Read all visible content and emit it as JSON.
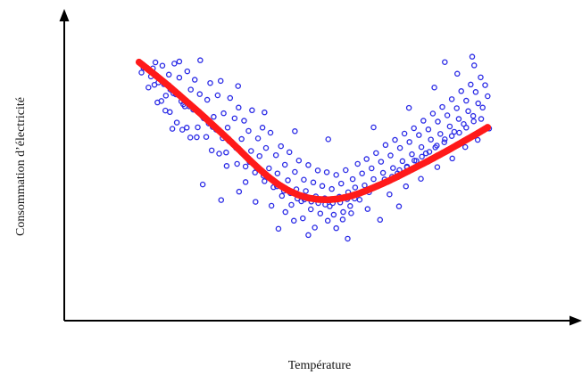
{
  "chart_data": {
    "type": "scatter",
    "title": "",
    "xlabel": "Température",
    "ylabel": "Consommation d’électricité",
    "xlim": [
      0,
      100
    ],
    "ylim": [
      0,
      100
    ],
    "grid": false,
    "legend": "none",
    "colors": {
      "points": "#2a2ae6",
      "fit": "#ff1a1a",
      "axes": "#000000"
    },
    "series": [
      {
        "type": "scatter",
        "points": [
          [
            15.5,
            82.9
          ],
          [
            15.9,
            84.5
          ],
          [
            16.9,
            77.9
          ],
          [
            17.8,
            84.3
          ],
          [
            18.1,
            78.8
          ],
          [
            18.7,
            72.9
          ],
          [
            19.5,
            73.4
          ],
          [
            19.7,
            85.2
          ],
          [
            20.3,
            70.2
          ],
          [
            20.4,
            75.2
          ],
          [
            21.0,
            82.2
          ],
          [
            21.7,
            64.1
          ],
          [
            21.9,
            76.0
          ],
          [
            22.1,
            85.9
          ],
          [
            22.6,
            66.2
          ],
          [
            23.1,
            81.2
          ],
          [
            23.5,
            73.3
          ],
          [
            23.7,
            63.8
          ],
          [
            24.2,
            71.6
          ],
          [
            24.7,
            83.3
          ],
          [
            25.3,
            61.2
          ],
          [
            25.4,
            77.2
          ],
          [
            25.9,
            70.5
          ],
          [
            26.2,
            80.5
          ],
          [
            26.8,
            64.6
          ],
          [
            27.2,
            75.7
          ],
          [
            27.3,
            87.0
          ],
          [
            28.0,
            67.6
          ],
          [
            28.5,
            61.4
          ],
          [
            28.7,
            73.8
          ],
          [
            29.3,
            79.4
          ],
          [
            29.8,
            64.7
          ],
          [
            30.0,
            68.1
          ],
          [
            30.8,
            75.3
          ],
          [
            31.1,
            55.8
          ],
          [
            31.4,
            80.1
          ],
          [
            32.0,
            69.3
          ],
          [
            32.5,
            56.2
          ],
          [
            32.8,
            64.5
          ],
          [
            33.3,
            74.4
          ],
          [
            33.7,
            59.5
          ],
          [
            34.2,
            67.6
          ],
          [
            34.7,
            52.4
          ],
          [
            35.0,
            71.2
          ],
          [
            35.6,
            60.7
          ],
          [
            36.1,
            66.8
          ],
          [
            36.4,
            51.5
          ],
          [
            37.0,
            63.4
          ],
          [
            37.5,
            56.7
          ],
          [
            37.7,
            70.3
          ],
          [
            38.3,
            49.5
          ],
          [
            38.9,
            60.9
          ],
          [
            39.2,
            55.0
          ],
          [
            39.8,
            64.5
          ],
          [
            40.2,
            46.6
          ],
          [
            40.5,
            57.7
          ],
          [
            41.1,
            50.9
          ],
          [
            41.4,
            62.8
          ],
          [
            42.0,
            44.6
          ],
          [
            42.5,
            55.3
          ],
          [
            42.8,
            49.2
          ],
          [
            43.5,
            58.3
          ],
          [
            43.7,
            41.7
          ],
          [
            44.3,
            52.1
          ],
          [
            44.9,
            46.9
          ],
          [
            45.2,
            56.3
          ],
          [
            45.6,
            38.7
          ],
          [
            46.3,
            49.7
          ],
          [
            46.6,
            43.9
          ],
          [
            47.1,
            53.5
          ],
          [
            47.6,
            39.9
          ],
          [
            48.1,
            47.1
          ],
          [
            48.5,
            43.3
          ],
          [
            49.0,
            52.0
          ],
          [
            49.5,
            37.2
          ],
          [
            50.0,
            46.2
          ],
          [
            50.5,
            41.5
          ],
          [
            50.9,
            50.2
          ],
          [
            51.4,
            35.8
          ],
          [
            51.8,
            45.0
          ],
          [
            52.3,
            40.9
          ],
          [
            52.7,
            49.6
          ],
          [
            53.3,
            38.2
          ],
          [
            53.7,
            44.0
          ],
          [
            54.1,
            35.4
          ],
          [
            54.6,
            48.7
          ],
          [
            55.2,
            41.4
          ],
          [
            55.6,
            45.8
          ],
          [
            56.0,
            36.3
          ],
          [
            56.5,
            50.3
          ],
          [
            57.0,
            42.9
          ],
          [
            57.4,
            38.3
          ],
          [
            57.9,
            47.3
          ],
          [
            58.4,
            44.5
          ],
          [
            58.9,
            52.4
          ],
          [
            59.3,
            40.4
          ],
          [
            59.8,
            49.2
          ],
          [
            60.3,
            45.2
          ],
          [
            60.7,
            54.0
          ],
          [
            61.2,
            42.9
          ],
          [
            61.7,
            50.9
          ],
          [
            62.1,
            47.3
          ],
          [
            62.6,
            56.0
          ],
          [
            63.1,
            45.1
          ],
          [
            63.6,
            53.1
          ],
          [
            64.0,
            49.4
          ],
          [
            64.5,
            58.7
          ],
          [
            65.0,
            46.6
          ],
          [
            65.5,
            55.2
          ],
          [
            66.0,
            51.0
          ],
          [
            66.4,
            60.4
          ],
          [
            66.9,
            49.2
          ],
          [
            67.4,
            57.7
          ],
          [
            67.9,
            53.3
          ],
          [
            68.3,
            62.5
          ],
          [
            68.8,
            51.2
          ],
          [
            69.3,
            59.7
          ],
          [
            69.8,
            55.6
          ],
          [
            70.2,
            64.3
          ],
          [
            70.7,
            53.4
          ],
          [
            71.2,
            62.0
          ],
          [
            71.7,
            58.0
          ],
          [
            72.1,
            66.8
          ],
          [
            72.6,
            55.9
          ],
          [
            73.1,
            63.9
          ],
          [
            73.6,
            60.5
          ],
          [
            74.0,
            69.2
          ],
          [
            74.5,
            57.9
          ],
          [
            75.0,
            66.5
          ],
          [
            75.5,
            62.4
          ],
          [
            75.9,
            71.4
          ],
          [
            76.4,
            60.6
          ],
          [
            76.9,
            68.6
          ],
          [
            77.4,
            64.9
          ],
          [
            77.8,
            74.0
          ],
          [
            78.3,
            63.1
          ],
          [
            78.8,
            71.0
          ],
          [
            79.2,
            67.4
          ],
          [
            79.7,
            76.7
          ],
          [
            80.2,
            65.7
          ],
          [
            80.7,
            73.5
          ],
          [
            81.1,
            70.0
          ],
          [
            81.6,
            78.9
          ],
          [
            82.1,
            68.4
          ],
          [
            82.6,
            76.4
          ],
          [
            83.1,
            72.6
          ],
          [
            83.6,
            81.3
          ],
          [
            84.0,
            71.2
          ],
          [
            84.5,
            78.7
          ],
          [
            85.0,
            75.0
          ],
          [
            17.4,
            81.6
          ],
          [
            18.9,
            79.6
          ],
          [
            20.0,
            79.0
          ],
          [
            21.3,
            77.2
          ],
          [
            22.4,
            75.6
          ],
          [
            23.9,
            72.3
          ],
          [
            25.1,
            71.6
          ],
          [
            26.5,
            70.6
          ],
          [
            27.7,
            68.3
          ],
          [
            29.0,
            65.9
          ],
          [
            30.5,
            63.8
          ],
          [
            31.8,
            61.0
          ],
          [
            33.1,
            60.0
          ],
          [
            34.5,
            57.7
          ],
          [
            35.9,
            55.8
          ],
          [
            37.2,
            53.0
          ],
          [
            38.6,
            51.1
          ],
          [
            40.0,
            48.4
          ],
          [
            41.3,
            47.6
          ],
          [
            42.7,
            44.9
          ],
          [
            44.1,
            43.4
          ],
          [
            45.4,
            42.6
          ],
          [
            46.8,
            40.8
          ],
          [
            48.2,
            40.5
          ],
          [
            49.6,
            39.8
          ],
          [
            51.0,
            39.3
          ],
          [
            52.4,
            38.8
          ],
          [
            53.9,
            39.3
          ],
          [
            55.4,
            39.5
          ],
          [
            56.8,
            40.6
          ],
          [
            58.3,
            40.8
          ],
          [
            59.8,
            42.9
          ],
          [
            61.3,
            43.9
          ],
          [
            62.8,
            45.2
          ],
          [
            64.3,
            47.2
          ],
          [
            65.8,
            48.1
          ],
          [
            67.3,
            50.3
          ],
          [
            68.8,
            51.5
          ],
          [
            70.3,
            53.5
          ],
          [
            71.8,
            54.8
          ],
          [
            73.3,
            56.4
          ],
          [
            74.8,
            58.5
          ],
          [
            76.3,
            59.6
          ],
          [
            77.8,
            61.7
          ],
          [
            79.3,
            62.8
          ],
          [
            80.7,
            64.5
          ],
          [
            82.2,
            66.6
          ],
          [
            83.7,
            67.4
          ],
          [
            44.4,
            36.3
          ],
          [
            47.9,
            34.2
          ],
          [
            50.3,
            31.1
          ],
          [
            52.9,
            33.4
          ],
          [
            55.9,
            33.8
          ],
          [
            57.6,
            35.9
          ],
          [
            46.1,
            33.4
          ],
          [
            54.6,
            30.9
          ],
          [
            60.9,
            37.3
          ],
          [
            41.6,
            38.4
          ],
          [
            36.4,
            46.3
          ],
          [
            32.6,
            51.7
          ],
          [
            29.6,
            56.9
          ],
          [
            26.6,
            61.3
          ],
          [
            24.6,
            64.5
          ],
          [
            21.2,
            69.7
          ],
          [
            65.3,
            42.2
          ],
          [
            68.6,
            44.9
          ],
          [
            71.6,
            47.4
          ],
          [
            74.9,
            51.3
          ],
          [
            77.9,
            54.2
          ],
          [
            80.5,
            58.0
          ],
          [
            83.0,
            60.4
          ],
          [
            85.3,
            64.2
          ],
          [
            18.3,
            86.3
          ],
          [
            23.1,
            86.6
          ],
          [
            34.9,
            78.4
          ],
          [
            40.2,
            69.6
          ],
          [
            46.3,
            63.3
          ],
          [
            53.0,
            60.6
          ],
          [
            62.1,
            64.6
          ],
          [
            69.2,
            71.1
          ],
          [
            74.3,
            77.9
          ],
          [
            78.9,
            82.5
          ],
          [
            82.3,
            85.3
          ],
          [
            81.9,
            88.2
          ],
          [
            76.4,
            86.4
          ],
          [
            27.8,
            45.5
          ],
          [
            31.5,
            40.3
          ],
          [
            35.1,
            43.1
          ],
          [
            38.4,
            39.7
          ],
          [
            43.0,
            30.7
          ],
          [
            49.0,
            28.6
          ],
          [
            56.9,
            27.4
          ],
          [
            63.4,
            33.7
          ],
          [
            67.2,
            38.2
          ]
        ]
      },
      {
        "type": "line",
        "points": [
          [
            15.0,
            86.4
          ],
          [
            17.0,
            83.8
          ],
          [
            19.0,
            81.1
          ],
          [
            21.0,
            78.4
          ],
          [
            23.0,
            75.5
          ],
          [
            25.0,
            72.6
          ],
          [
            27.0,
            69.7
          ],
          [
            29.0,
            66.7
          ],
          [
            31.0,
            63.6
          ],
          [
            33.0,
            60.5
          ],
          [
            35.0,
            57.3
          ],
          [
            37.0,
            54.0
          ],
          [
            39.0,
            50.9
          ],
          [
            41.0,
            48.0
          ],
          [
            43.0,
            45.5
          ],
          [
            45.0,
            43.5
          ],
          [
            47.0,
            42.0
          ],
          [
            49.0,
            41.0
          ],
          [
            51.0,
            40.5
          ],
          [
            53.0,
            40.4
          ],
          [
            55.0,
            40.7
          ],
          [
            57.0,
            41.4
          ],
          [
            59.0,
            42.4
          ],
          [
            61.0,
            43.7
          ],
          [
            63.0,
            45.1
          ],
          [
            65.0,
            46.6
          ],
          [
            67.0,
            48.2
          ],
          [
            69.0,
            49.9
          ],
          [
            71.0,
            51.6
          ],
          [
            73.0,
            53.3
          ],
          [
            75.0,
            55.1
          ],
          [
            77.0,
            56.9
          ],
          [
            79.0,
            58.8
          ],
          [
            81.0,
            60.7
          ],
          [
            83.0,
            62.6
          ],
          [
            85.0,
            64.6
          ]
        ]
      }
    ]
  }
}
